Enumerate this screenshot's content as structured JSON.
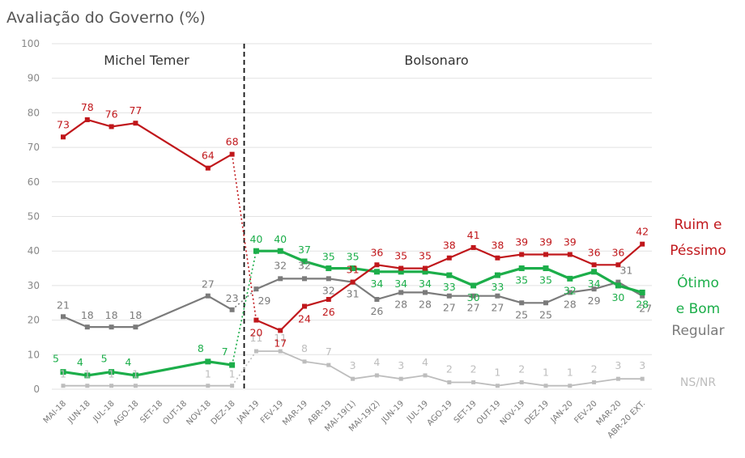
{
  "chart_data": {
    "type": "line",
    "title": "Avaliação do Governo (%)",
    "ylim": [
      0,
      100
    ],
    "yticks": [
      0,
      10,
      20,
      30,
      40,
      50,
      60,
      70,
      80,
      90,
      100
    ],
    "grid": true,
    "periods": [
      "Michel Temer",
      "Bolsonaro"
    ],
    "categories": [
      "MAI-18",
      "JUN-18",
      "JUL-18",
      "AGO-18",
      "SET-18",
      "OUT-18",
      "NOV-18",
      "DEZ-18",
      "JAN-19",
      "FEV-19",
      "MAR-19",
      "ABR-19",
      "MAI-19(1)",
      "MAI-19(2)",
      "JUN-19",
      "JUL-19",
      "AGO-19",
      "SET-19",
      "OUT-19",
      "NOV-19",
      "DEZ-19",
      "JAN-20",
      "FEV-20",
      "MAR-20",
      "ABR-20 EXT."
    ],
    "series": [
      {
        "name": "Ruim e Péssimo",
        "legend_lines": [
          "Ruim e",
          "Péssimo"
        ],
        "color": "#c0171b",
        "values": [
          73,
          78,
          76,
          77,
          null,
          null,
          64,
          68,
          20,
          17,
          24,
          26,
          31,
          36,
          35,
          35,
          38,
          41,
          38,
          39,
          39,
          39,
          36,
          36,
          42
        ],
        "labels": [
          "73",
          "78",
          "76",
          "77",
          null,
          null,
          "64",
          "68",
          "20",
          "17",
          "24",
          "26",
          "31",
          "36",
          "35",
          "35",
          "38",
          "41",
          "38",
          "39",
          "39",
          "39",
          "36",
          "36",
          "42"
        ]
      },
      {
        "name": "Ótimo e Bom",
        "legend_lines": [
          "Ótimo",
          "e Bom"
        ],
        "color": "#1cae4a",
        "values": [
          5,
          4,
          5,
          4,
          null,
          null,
          8,
          7,
          40,
          40,
          37,
          35,
          35,
          34,
          34,
          34,
          33,
          30,
          33,
          35,
          35,
          32,
          34,
          30,
          28
        ],
        "labels": [
          "5",
          "4",
          "5",
          "4",
          null,
          null,
          "8",
          "7",
          "40",
          "40",
          "37",
          "35",
          "35",
          "34",
          "34",
          "34",
          "33",
          "30",
          "33",
          "35",
          "35",
          "32",
          "34",
          "30",
          "28"
        ]
      },
      {
        "name": "Regular",
        "legend_lines": [
          "Regular"
        ],
        "color": "#7b7b7b",
        "values": [
          21,
          18,
          18,
          18,
          null,
          null,
          27,
          23,
          29,
          32,
          32,
          32,
          31,
          26,
          28,
          28,
          27,
          27,
          27,
          25,
          25,
          28,
          29,
          31,
          27
        ],
        "labels": [
          "21",
          "18",
          "18",
          "18",
          null,
          null,
          "27",
          "23",
          "29",
          "32",
          "32",
          "32",
          "31",
          "26",
          "28",
          "28",
          "27",
          "27",
          "27",
          "25",
          "25",
          "28",
          "29",
          "31",
          "27"
        ]
      },
      {
        "name": "NS/NR",
        "legend_lines": [
          "NS/NR"
        ],
        "color": "#bdbdbd",
        "values": [
          1,
          1,
          1,
          1,
          null,
          null,
          1,
          1,
          11,
          11,
          8,
          7,
          3,
          4,
          3,
          4,
          2,
          2,
          1,
          2,
          1,
          1,
          2,
          3,
          3
        ],
        "labels": [
          "1",
          "1",
          "1",
          "1",
          null,
          null,
          "1",
          "1",
          "11",
          "11",
          "8",
          "7",
          "3",
          "4",
          "3",
          "4",
          "2",
          "2",
          "1",
          "2",
          "1",
          "1",
          "2",
          "3",
          "3"
        ]
      }
    ]
  }
}
